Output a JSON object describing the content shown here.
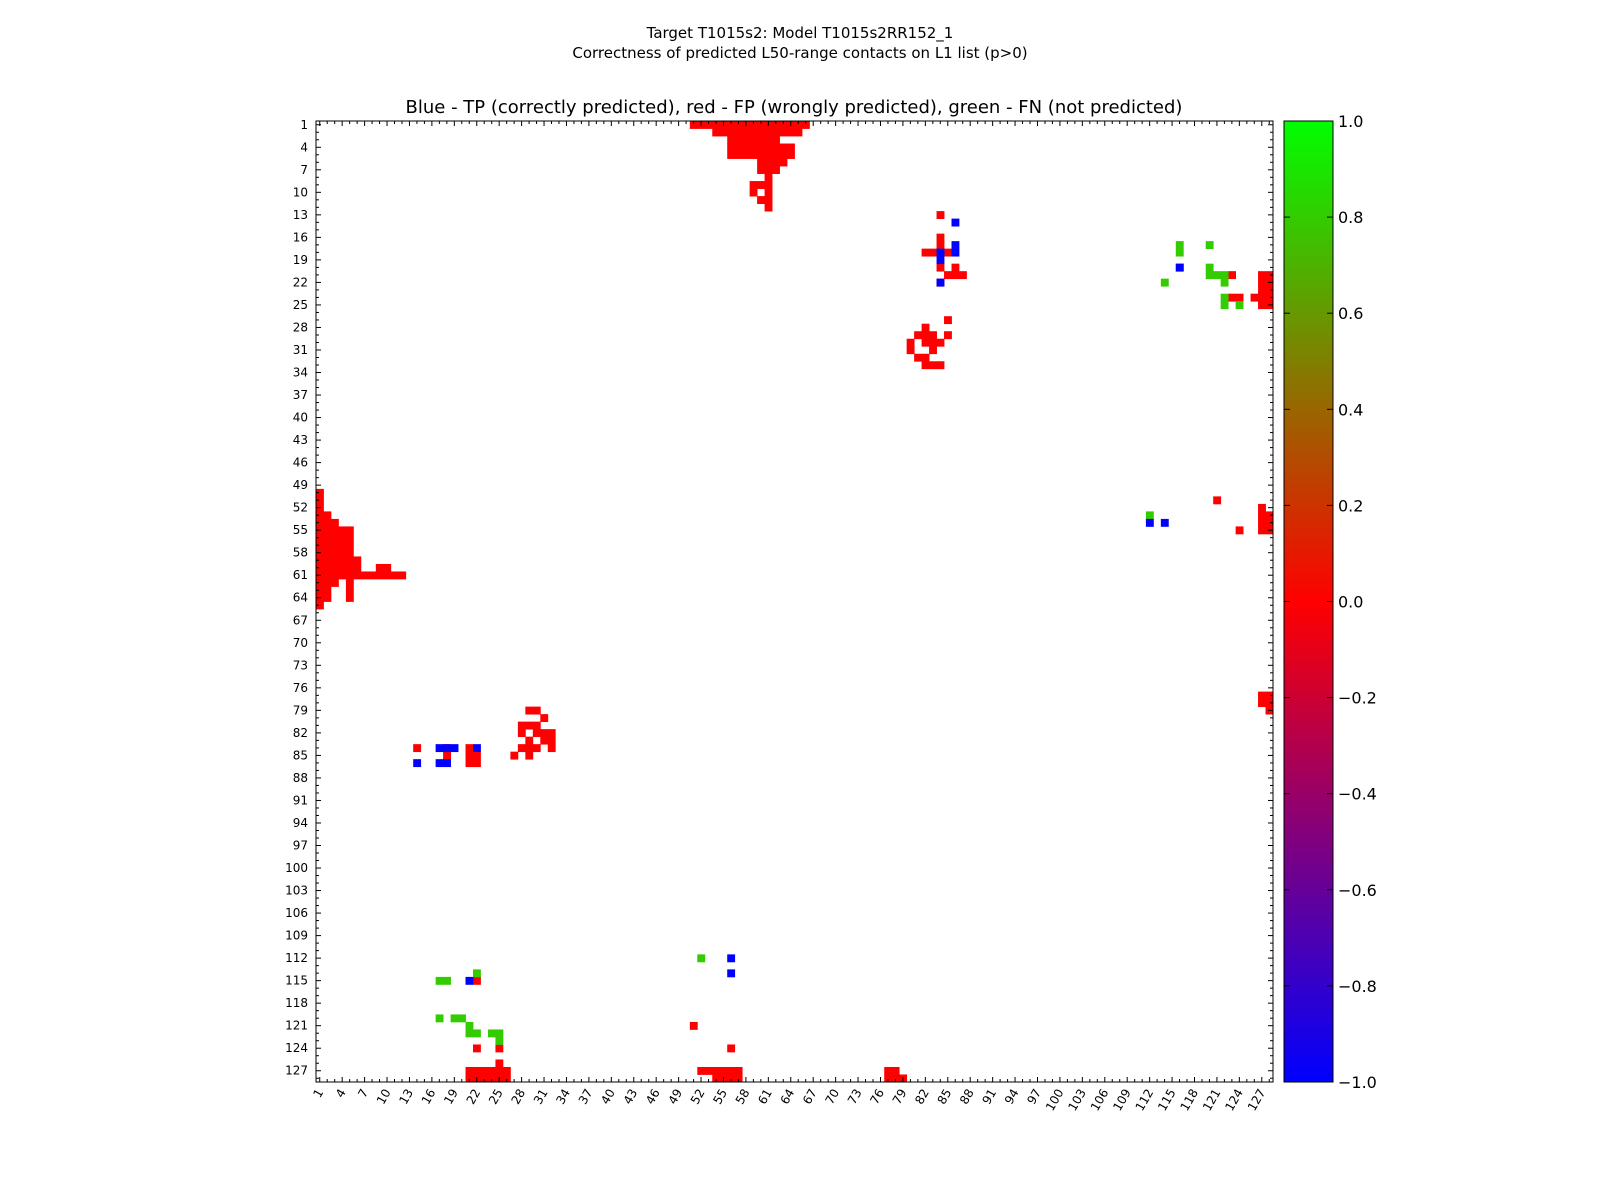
{
  "figure_title_line1": "Target T1015s2: Model T1015s2RR152_1",
  "figure_title_line2": "Correctness of predicted L50-range contacts on L1 list (p>0)",
  "chart_data": {
    "type": "heatmap",
    "title": "Blue - TP (correctly predicted), red - FP (wrongly predicted), green - FN (not predicted)",
    "xlabel": "",
    "ylabel": "",
    "n_residues": 128,
    "axis_range": [
      1,
      128
    ],
    "tick_labels": [
      1,
      4,
      7,
      10,
      13,
      16,
      19,
      22,
      25,
      28,
      31,
      34,
      37,
      40,
      43,
      46,
      49,
      52,
      55,
      58,
      61,
      64,
      67,
      70,
      73,
      76,
      79,
      82,
      85,
      88,
      91,
      94,
      97,
      100,
      103,
      106,
      109,
      112,
      115,
      118,
      121,
      124,
      127
    ],
    "legend": {
      "TP": "correctly predicted",
      "FP": "wrongly predicted",
      "FN": "not predicted"
    },
    "colors": {
      "TP": "#0000ff",
      "FP": "#ff0000",
      "FN": "#33cc00"
    },
    "colorbar": {
      "range": [
        -1.0,
        1.0
      ],
      "ticks": [
        "1.0",
        "0.8",
        "0.6",
        "0.4",
        "0.2",
        "0.0",
        "−0.2",
        "−0.4",
        "−0.6",
        "−0.8",
        "−1.0"
      ],
      "stops": [
        {
          "value": 1.0,
          "color": "#00ff00"
        },
        {
          "value": 0.0,
          "color": "#ff0000"
        },
        {
          "value": -1.0,
          "color": "#0000ff"
        }
      ]
    },
    "cells": {
      "FP": [
        [
          1,
          51,
          66
        ],
        [
          2,
          54,
          65
        ],
        [
          3,
          56,
          62
        ],
        [
          4,
          56,
          64
        ],
        [
          5,
          56,
          64
        ],
        [
          6,
          60,
          63
        ],
        [
          7,
          60,
          62
        ],
        [
          8,
          61,
          61
        ],
        [
          9,
          59,
          61
        ],
        [
          10,
          59,
          59
        ],
        [
          10,
          61,
          61
        ],
        [
          11,
          60,
          61
        ],
        [
          12,
          61,
          61
        ],
        [
          13,
          84,
          84
        ],
        [
          16,
          84,
          84
        ],
        [
          17,
          84,
          84
        ],
        [
          18,
          82,
          85
        ],
        [
          20,
          84,
          84
        ],
        [
          20,
          86,
          86
        ],
        [
          21,
          85,
          87
        ],
        [
          22,
          84,
          84
        ],
        [
          27,
          85,
          85
        ],
        [
          28,
          82,
          82
        ],
        [
          29,
          81,
          83
        ],
        [
          29,
          85,
          85
        ],
        [
          30,
          80,
          80
        ],
        [
          30,
          82,
          84
        ],
        [
          31,
          80,
          80
        ],
        [
          31,
          83,
          83
        ],
        [
          32,
          81,
          82
        ],
        [
          33,
          82,
          84
        ],
        [
          20,
          116,
          116
        ],
        [
          21,
          123,
          123
        ],
        [
          21,
          127,
          128
        ],
        [
          22,
          127,
          128
        ],
        [
          23,
          127,
          128
        ],
        [
          24,
          123,
          124
        ],
        [
          24,
          126,
          128
        ],
        [
          25,
          127,
          128
        ],
        [
          51,
          121,
          121
        ],
        [
          52,
          127,
          127
        ],
        [
          53,
          127,
          128
        ],
        [
          54,
          127,
          128
        ],
        [
          55,
          124,
          124
        ],
        [
          55,
          127,
          128
        ],
        [
          77,
          127,
          128
        ],
        [
          78,
          127,
          128
        ],
        [
          79,
          128,
          128
        ],
        [
          50,
          1,
          1
        ],
        [
          51,
          1,
          1
        ],
        [
          52,
          1,
          1
        ],
        [
          53,
          1,
          2
        ],
        [
          54,
          1,
          3
        ],
        [
          55,
          1,
          5
        ],
        [
          56,
          1,
          5
        ],
        [
          57,
          1,
          5
        ],
        [
          58,
          1,
          5
        ],
        [
          59,
          1,
          6
        ],
        [
          60,
          1,
          6
        ],
        [
          60,
          9,
          10
        ],
        [
          61,
          1,
          12
        ],
        [
          62,
          1,
          3
        ],
        [
          62,
          5,
          5
        ],
        [
          63,
          1,
          2
        ],
        [
          63,
          5,
          5
        ],
        [
          64,
          1,
          2
        ],
        [
          64,
          5,
          5
        ],
        [
          65,
          1,
          1
        ],
        [
          79,
          29,
          30
        ],
        [
          80,
          31,
          31
        ],
        [
          81,
          28,
          30
        ],
        [
          82,
          28,
          28
        ],
        [
          82,
          30,
          32
        ],
        [
          83,
          29,
          29
        ],
        [
          83,
          31,
          32
        ],
        [
          84,
          28,
          30
        ],
        [
          84,
          32,
          32
        ],
        [
          84,
          14,
          14
        ],
        [
          84,
          18,
          18
        ],
        [
          84,
          21,
          21
        ],
        [
          85,
          27,
          27
        ],
        [
          85,
          29,
          29
        ],
        [
          85,
          18,
          18
        ],
        [
          85,
          21,
          22
        ],
        [
          86,
          21,
          22
        ],
        [
          115,
          22,
          22
        ],
        [
          121,
          51,
          51
        ],
        [
          124,
          22,
          22
        ],
        [
          124,
          25,
          25
        ],
        [
          124,
          56,
          56
        ],
        [
          126,
          25,
          25
        ],
        [
          127,
          21,
          26
        ],
        [
          127,
          52,
          57
        ],
        [
          127,
          77,
          78
        ],
        [
          128,
          21,
          26
        ],
        [
          128,
          54,
          57
        ],
        [
          128,
          77,
          79
        ]
      ],
      "TP": [
        [
          14,
          86,
          86
        ],
        [
          17,
          86,
          86
        ],
        [
          18,
          84,
          84
        ],
        [
          18,
          86,
          86
        ],
        [
          19,
          84,
          84
        ],
        [
          22,
          84,
          84
        ],
        [
          20,
          116,
          116
        ],
        [
          54,
          112,
          112
        ],
        [
          54,
          114,
          114
        ],
        [
          84,
          17,
          19
        ],
        [
          84,
          22,
          22
        ],
        [
          86,
          14,
          14
        ],
        [
          86,
          17,
          18
        ],
        [
          112,
          56,
          56
        ],
        [
          114,
          56,
          56
        ],
        [
          115,
          21,
          21
        ]
      ],
      "FN": [
        [
          17,
          116,
          116
        ],
        [
          18,
          116,
          116
        ],
        [
          17,
          120,
          120
        ],
        [
          20,
          120,
          120
        ],
        [
          21,
          120,
          122
        ],
        [
          22,
          114,
          114
        ],
        [
          22,
          122,
          122
        ],
        [
          24,
          122,
          122
        ],
        [
          25,
          122,
          122
        ],
        [
          25,
          124,
          124
        ],
        [
          53,
          112,
          112
        ],
        [
          112,
          52,
          52
        ],
        [
          114,
          22,
          22
        ],
        [
          115,
          17,
          18
        ],
        [
          120,
          17,
          17
        ],
        [
          120,
          19,
          20
        ],
        [
          121,
          21,
          21
        ],
        [
          122,
          21,
          22
        ],
        [
          122,
          24,
          25
        ],
        [
          123,
          25,
          25
        ]
      ]
    }
  }
}
